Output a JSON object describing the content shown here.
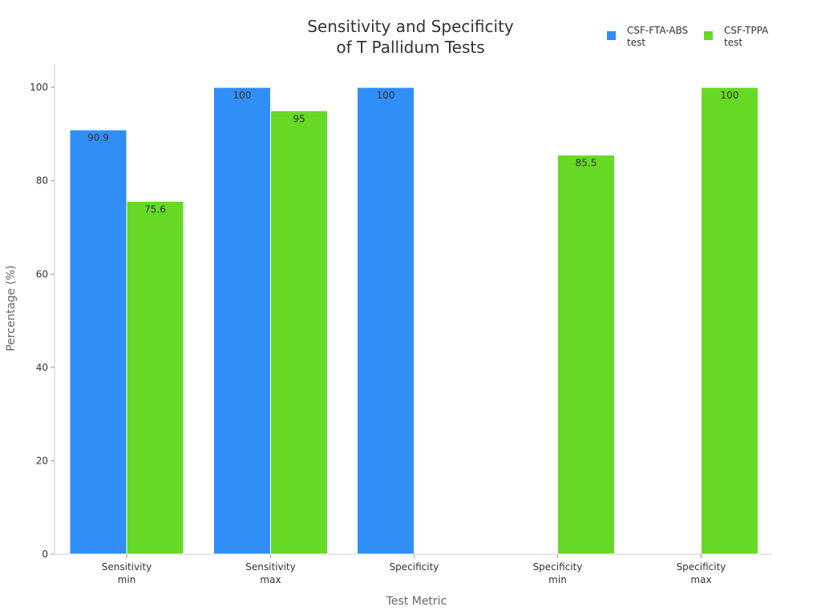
{
  "chart_data": {
    "type": "bar",
    "title": [
      "Sensitivity and Specificity",
      "of T Pallidum Tests"
    ],
    "xlabel": "Test Metric",
    "ylabel": "Percentage (%)",
    "ylim": [
      0,
      105
    ],
    "yticks": [
      0,
      20,
      40,
      60,
      80,
      100
    ],
    "grid": false,
    "legend_position": "top-right",
    "categories": [
      [
        "Sensitivity",
        "min"
      ],
      [
        "Sensitivity",
        "max"
      ],
      [
        "Specificity"
      ],
      [
        "Specificity",
        "min"
      ],
      [
        "Specificity",
        "max"
      ]
    ],
    "series": [
      {
        "name": [
          "CSF-FTA-ABS",
          "test"
        ],
        "color": "#2f8ff7",
        "values": [
          90.9,
          100,
          100,
          null,
          null
        ],
        "labels": [
          "90.9",
          "100",
          "100",
          null,
          null
        ]
      },
      {
        "name": [
          "CSF-TPPA",
          "test"
        ],
        "color": "#66d926",
        "values": [
          75.6,
          95,
          null,
          85.5,
          100
        ],
        "labels": [
          "75.6",
          "95",
          null,
          "85.5",
          "100"
        ]
      }
    ]
  }
}
